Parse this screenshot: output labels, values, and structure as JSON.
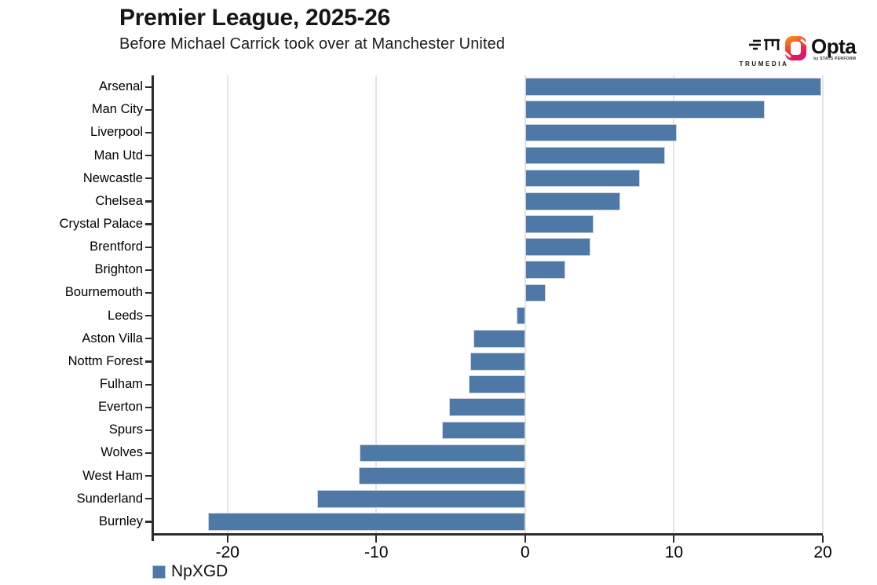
{
  "header": {
    "title": "Premier League, 2025-26",
    "subtitle": "Before Michael Carrick took over at Manchester United"
  },
  "branding": {
    "trumedia_label": "TRUMEDIA",
    "opta_label": "Opta",
    "opta_sublabel": "by STATS PERFORM"
  },
  "legend": {
    "label": "NpXGD"
  },
  "chart_data": {
    "type": "bar",
    "orientation": "horizontal",
    "title": "Premier League, 2025-26",
    "subtitle": "Before Michael Carrick took over at Manchester United",
    "series_name": "NpXGD",
    "categories": [
      "Arsenal",
      "Man City",
      "Liverpool",
      "Man Utd",
      "Newcastle",
      "Chelsea",
      "Crystal Palace",
      "Brentford",
      "Brighton",
      "Bournemouth",
      "Leeds",
      "Aston Villa",
      "Nottm Forest",
      "Fulham",
      "Everton",
      "Spurs",
      "Wolves",
      "West Ham",
      "Sunderland",
      "Burnley"
    ],
    "values": [
      19.9,
      16.1,
      10.2,
      9.4,
      7.7,
      6.4,
      4.6,
      4.4,
      2.7,
      1.4,
      -0.6,
      -3.5,
      -3.7,
      -3.8,
      -5.1,
      -5.6,
      -11.1,
      -11.2,
      -14.0,
      -21.3
    ],
    "xlabel": "",
    "ylabel": "",
    "xlim": [
      -25,
      20
    ],
    "xticks": [
      -20,
      -10,
      0,
      10,
      20
    ],
    "grid": true,
    "bar_color": "#4e79a7",
    "bar_border_color": "#ccd4e3",
    "grid_color": "#e4e4e4",
    "axis_color": "#2d2d2d",
    "legend_position": "bottom-left"
  }
}
